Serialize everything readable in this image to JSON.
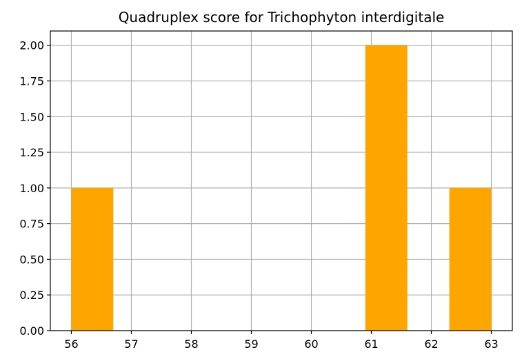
{
  "chart_data": {
    "type": "bar",
    "title": "Quadruplex score for Trichophyton interdigitale",
    "xlabel": "",
    "ylabel": "",
    "xlim": [
      55.65,
      63.35
    ],
    "ylim": [
      0,
      2.1
    ],
    "xticks": [
      56,
      57,
      58,
      59,
      60,
      61,
      62,
      63
    ],
    "xtick_labels": [
      "56",
      "57",
      "58",
      "59",
      "60",
      "61",
      "62",
      "63"
    ],
    "yticks": [
      0,
      0.25,
      0.5,
      0.75,
      1.0,
      1.25,
      1.5,
      1.75,
      2.0
    ],
    "ytick_labels": [
      "0.00",
      "0.25",
      "0.50",
      "0.75",
      "1.00",
      "1.25",
      "1.50",
      "1.75",
      "2.00"
    ],
    "bins": [
      {
        "start": 56.0,
        "end": 56.7,
        "count": 1
      },
      {
        "start": 56.7,
        "end": 57.4,
        "count": 0
      },
      {
        "start": 57.4,
        "end": 58.1,
        "count": 0
      },
      {
        "start": 58.1,
        "end": 58.8,
        "count": 0
      },
      {
        "start": 58.8,
        "end": 59.5,
        "count": 0
      },
      {
        "start": 59.5,
        "end": 60.2,
        "count": 0
      },
      {
        "start": 60.2,
        "end": 60.9,
        "count": 0
      },
      {
        "start": 60.9,
        "end": 61.6,
        "count": 2
      },
      {
        "start": 61.6,
        "end": 62.3,
        "count": 0
      },
      {
        "start": 62.3,
        "end": 63.0,
        "count": 1
      }
    ],
    "bar_color": "#ffa500",
    "grid": true,
    "grid_color": "#b0b0b0"
  }
}
